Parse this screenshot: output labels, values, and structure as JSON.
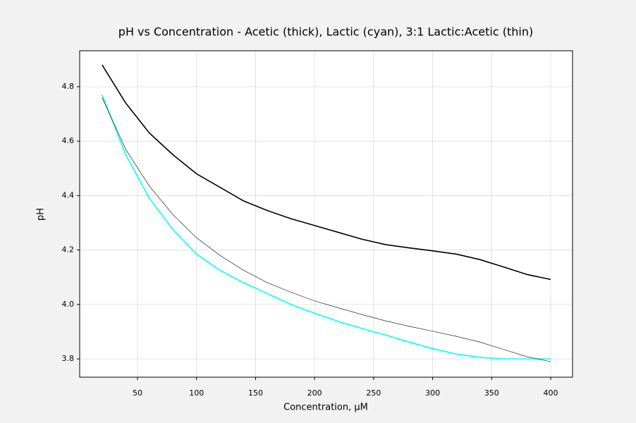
{
  "chart_data": {
    "type": "line",
    "title": "pH vs Concentration - Acetic (thick), Lactic (cyan), 3:1 Lactic:Acetic (thin)",
    "xlabel": "Concentration, μM",
    "ylabel": "pH",
    "x": [
      20,
      40,
      60,
      80,
      100,
      120,
      140,
      160,
      180,
      200,
      220,
      240,
      260,
      280,
      300,
      320,
      340,
      360,
      380,
      400
    ],
    "series": [
      {
        "color": "#000000",
        "width": 1.6,
        "values": [
          4.88,
          4.74,
          4.63,
          4.55,
          4.48,
          4.43,
          4.38,
          4.345,
          4.315,
          4.29,
          4.265,
          4.24,
          4.22,
          4.208,
          4.197,
          4.185,
          4.165,
          4.138,
          4.11,
          4.092
        ]
      },
      {
        "color": "#00ffff",
        "width": 1.6,
        "values": [
          4.77,
          4.55,
          4.39,
          4.275,
          4.185,
          4.125,
          4.08,
          4.04,
          4.0,
          3.968,
          3.938,
          3.912,
          3.888,
          3.862,
          3.838,
          3.818,
          3.806,
          3.8,
          3.8,
          3.8
        ]
      },
      {
        "color": "#000000",
        "width": 0.6,
        "values": [
          4.76,
          4.57,
          4.435,
          4.33,
          4.245,
          4.18,
          4.125,
          4.08,
          4.045,
          4.013,
          3.988,
          3.963,
          3.94,
          3.92,
          3.902,
          3.883,
          3.862,
          3.835,
          3.808,
          3.79
        ]
      }
    ],
    "xlim": [
      1,
      418.5
    ],
    "ylim": [
      3.733,
      4.932
    ],
    "xticks": [
      50,
      100,
      150,
      200,
      250,
      300,
      350,
      400
    ],
    "yticks": [
      3.8,
      {
        "value": 4,
        "label": "4.0"
      },
      4.2,
      4.4,
      4.6,
      4.8
    ],
    "grid": true
  }
}
